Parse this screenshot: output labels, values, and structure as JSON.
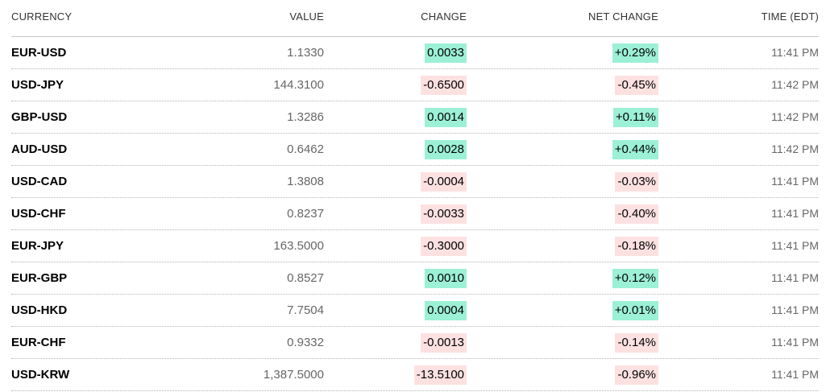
{
  "headers": {
    "currency": "CURRENCY",
    "value": "VALUE",
    "change": "CHANGE",
    "net_change": "NET CHANGE",
    "time": "TIME (EDT)"
  },
  "colors": {
    "positive_bg": "#9cf0d6",
    "negative_bg": "#fde1e1"
  },
  "rows": [
    {
      "currency": "EUR-USD",
      "value": "1.1330",
      "change": "0.0033",
      "net_change": "+0.29%",
      "time": "11:41 PM",
      "direction": "up"
    },
    {
      "currency": "USD-JPY",
      "value": "144.3100",
      "change": "-0.6500",
      "net_change": "-0.45%",
      "time": "11:42 PM",
      "direction": "down"
    },
    {
      "currency": "GBP-USD",
      "value": "1.3286",
      "change": "0.0014",
      "net_change": "+0.11%",
      "time": "11:42 PM",
      "direction": "up"
    },
    {
      "currency": "AUD-USD",
      "value": "0.6462",
      "change": "0.0028",
      "net_change": "+0.44%",
      "time": "11:42 PM",
      "direction": "up"
    },
    {
      "currency": "USD-CAD",
      "value": "1.3808",
      "change": "-0.0004",
      "net_change": "-0.03%",
      "time": "11:41 PM",
      "direction": "down"
    },
    {
      "currency": "USD-CHF",
      "value": "0.8237",
      "change": "-0.0033",
      "net_change": "-0.40%",
      "time": "11:41 PM",
      "direction": "down"
    },
    {
      "currency": "EUR-JPY",
      "value": "163.5000",
      "change": "-0.3000",
      "net_change": "-0.18%",
      "time": "11:41 PM",
      "direction": "down"
    },
    {
      "currency": "EUR-GBP",
      "value": "0.8527",
      "change": "0.0010",
      "net_change": "+0.12%",
      "time": "11:41 PM",
      "direction": "up"
    },
    {
      "currency": "USD-HKD",
      "value": "7.7504",
      "change": "0.0004",
      "net_change": "+0.01%",
      "time": "11:41 PM",
      "direction": "up"
    },
    {
      "currency": "EUR-CHF",
      "value": "0.9332",
      "change": "-0.0013",
      "net_change": "-0.14%",
      "time": "11:41 PM",
      "direction": "down"
    },
    {
      "currency": "USD-KRW",
      "value": "1,387.5000",
      "change": "-13.5100",
      "net_change": "-0.96%",
      "time": "11:41 PM",
      "direction": "down"
    }
  ]
}
